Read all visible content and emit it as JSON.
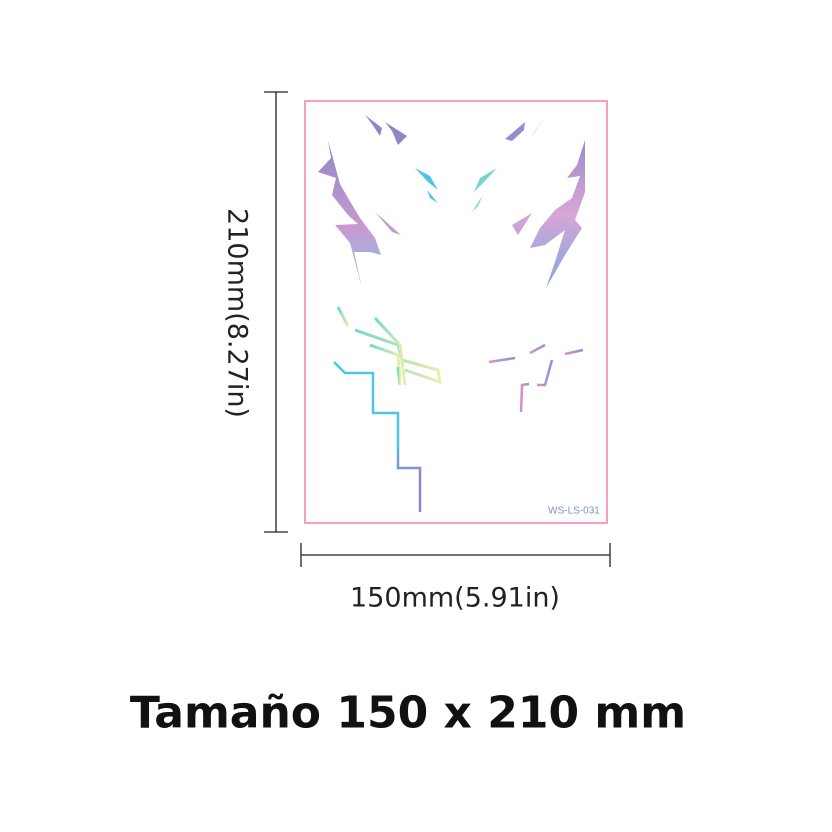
{
  "product": {
    "code_label": "WS-LS-031",
    "height_label": "210mm(8.27in)",
    "width_label": "150mm(5.91in)",
    "title": "Tamaño 150 x 210 mm"
  },
  "colors": {
    "sheet_border": "#f080a8",
    "purple": "#8f86c8",
    "cyan": "#4fc3e6",
    "pink": "#d98bc4",
    "yellow": "#e8ecb0"
  }
}
